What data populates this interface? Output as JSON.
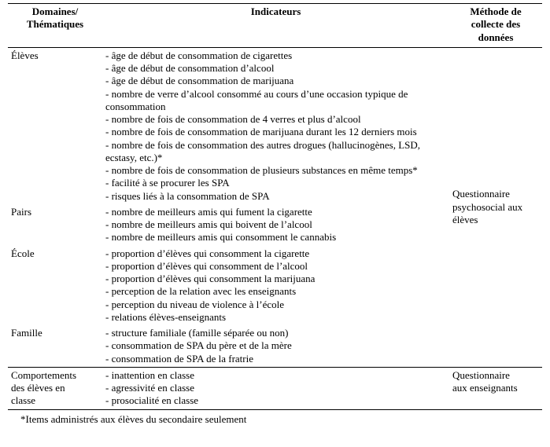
{
  "headers": {
    "col1_l1": "Domaines/",
    "col1_l2": "Thématiques",
    "col2": "Indicateurs",
    "col3_l1": "Méthode de",
    "col3_l2": "collecte des",
    "col3_l3": "données"
  },
  "section1": {
    "rows": [
      {
        "domain": "Élèves",
        "indicators": [
          "- âge de début de consommation de cigarettes",
          "- âge de début de consommation d’alcool",
          "- âge de début de consommation de marijuana",
          "- nombre de verre d’alcool consommé au cours d’une occasion typique de consommation",
          "- nombre de fois de consommation de 4 verres et plus d’alcool",
          "- nombre de fois de consommation de marijuana durant les 12 derniers mois",
          "- nombre de fois de consommation des autres drogues (hallucinogènes, LSD, ecstasy, etc.)*",
          "- nombre de fois de consommation de plusieurs substances en même temps*",
          "- facilité à se procurer les SPA",
          "- risques liés à la consommation de SPA"
        ]
      },
      {
        "domain": "Pairs",
        "indicators": [
          "- nombre de meilleurs amis qui fument la cigarette",
          "- nombre de meilleurs amis qui boivent de l’alcool",
          "- nombre de meilleurs amis qui consomment le cannabis"
        ]
      },
      {
        "domain": "École",
        "indicators": [
          "- proportion d’élèves qui consomment la cigarette",
          "- proportion d’élèves qui consomment de l’alcool",
          "- proportion d’élèves qui consomment la marijuana",
          "- perception de la relation avec les enseignants",
          "- perception du niveau de violence à l’école",
          "- relations élèves-enseignants"
        ]
      },
      {
        "domain": "Famille",
        "indicators": [
          "- structure familiale (famille séparée ou non)",
          "- consommation de SPA du père et de la mère",
          "- consommation de SPA de la fratrie"
        ]
      }
    ],
    "method_l1": "Questionnaire",
    "method_l2": "psychosocial aux",
    "method_l3": "élèves"
  },
  "section2": {
    "domain_l1": "Comportements",
    "domain_l2": "des élèves en",
    "domain_l3": "classe",
    "indicators": [
      "-  inattention en classe",
      "-  agressivité en classe",
      "-  prosocialité en classe"
    ],
    "method_l1": "Questionnaire",
    "method_l2": "aux enseignants"
  },
  "footnote": "*Items administrés aux élèves du secondaire seulement"
}
